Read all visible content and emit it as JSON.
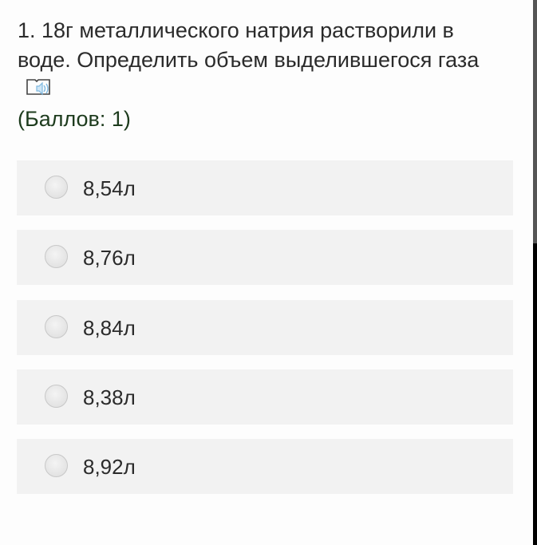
{
  "question": {
    "text": "1. 18г металлического натрия растворили в воде. Определить объем выделившегося газа",
    "audio_icon": "speaker-book-icon",
    "score": "(Баллов: 1)"
  },
  "options": [
    {
      "label": "8,54л",
      "selected": false
    },
    {
      "label": "8,76л",
      "selected": false
    },
    {
      "label": "8,84л",
      "selected": false
    },
    {
      "label": "8,38л",
      "selected": false
    },
    {
      "label": "8,92л",
      "selected": false
    }
  ],
  "colors": {
    "score": "#1d3b1d",
    "option_bg": "#f2f2f2",
    "audio_accent": "#7fb9e0"
  }
}
